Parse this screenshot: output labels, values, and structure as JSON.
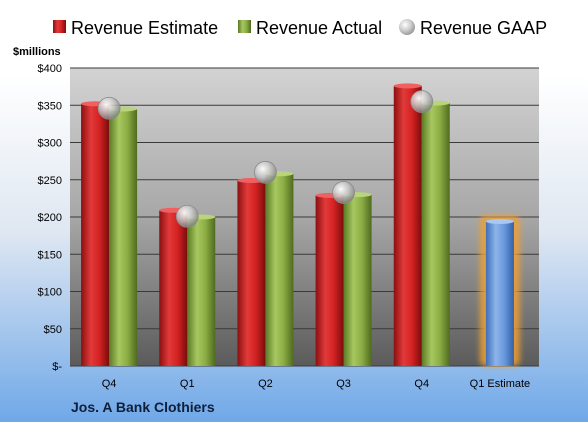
{
  "chart_data": {
    "type": "bar",
    "unit_label": "$millions",
    "footer_title": "Jos. A Bank Clothiers",
    "categories": [
      "Q4",
      "Q1",
      "Q2",
      "Q3",
      "Q4",
      "Q1 Estimate"
    ],
    "ylim": [
      0,
      400
    ],
    "y_ticks": [
      0,
      50,
      100,
      150,
      200,
      250,
      300,
      350,
      400
    ],
    "y_tick_labels": [
      "$-",
      "$50",
      "$100",
      "$150",
      "$200",
      "$250",
      "$300",
      "$350",
      "$400"
    ],
    "grid": true,
    "legend_position": "top",
    "series": [
      {
        "name": "Revenue Estimate",
        "values": [
          352,
          209,
          249,
          229,
          376,
          null
        ],
        "color": "#cc1f1f",
        "marker": "bar"
      },
      {
        "name": "Revenue Actual",
        "values": [
          345,
          200,
          258,
          230,
          353,
          null
        ],
        "color": "#86a83f",
        "marker": "bar"
      },
      {
        "name": "Revenue GAAP",
        "values": [
          346,
          201,
          260,
          233,
          355,
          null
        ],
        "color": "#b0b0b0",
        "marker": "bubble"
      }
    ],
    "forecast": {
      "category": "Q1 Estimate",
      "value": 194,
      "color": "#5b8fd4",
      "glow": "#f0a030"
    }
  }
}
